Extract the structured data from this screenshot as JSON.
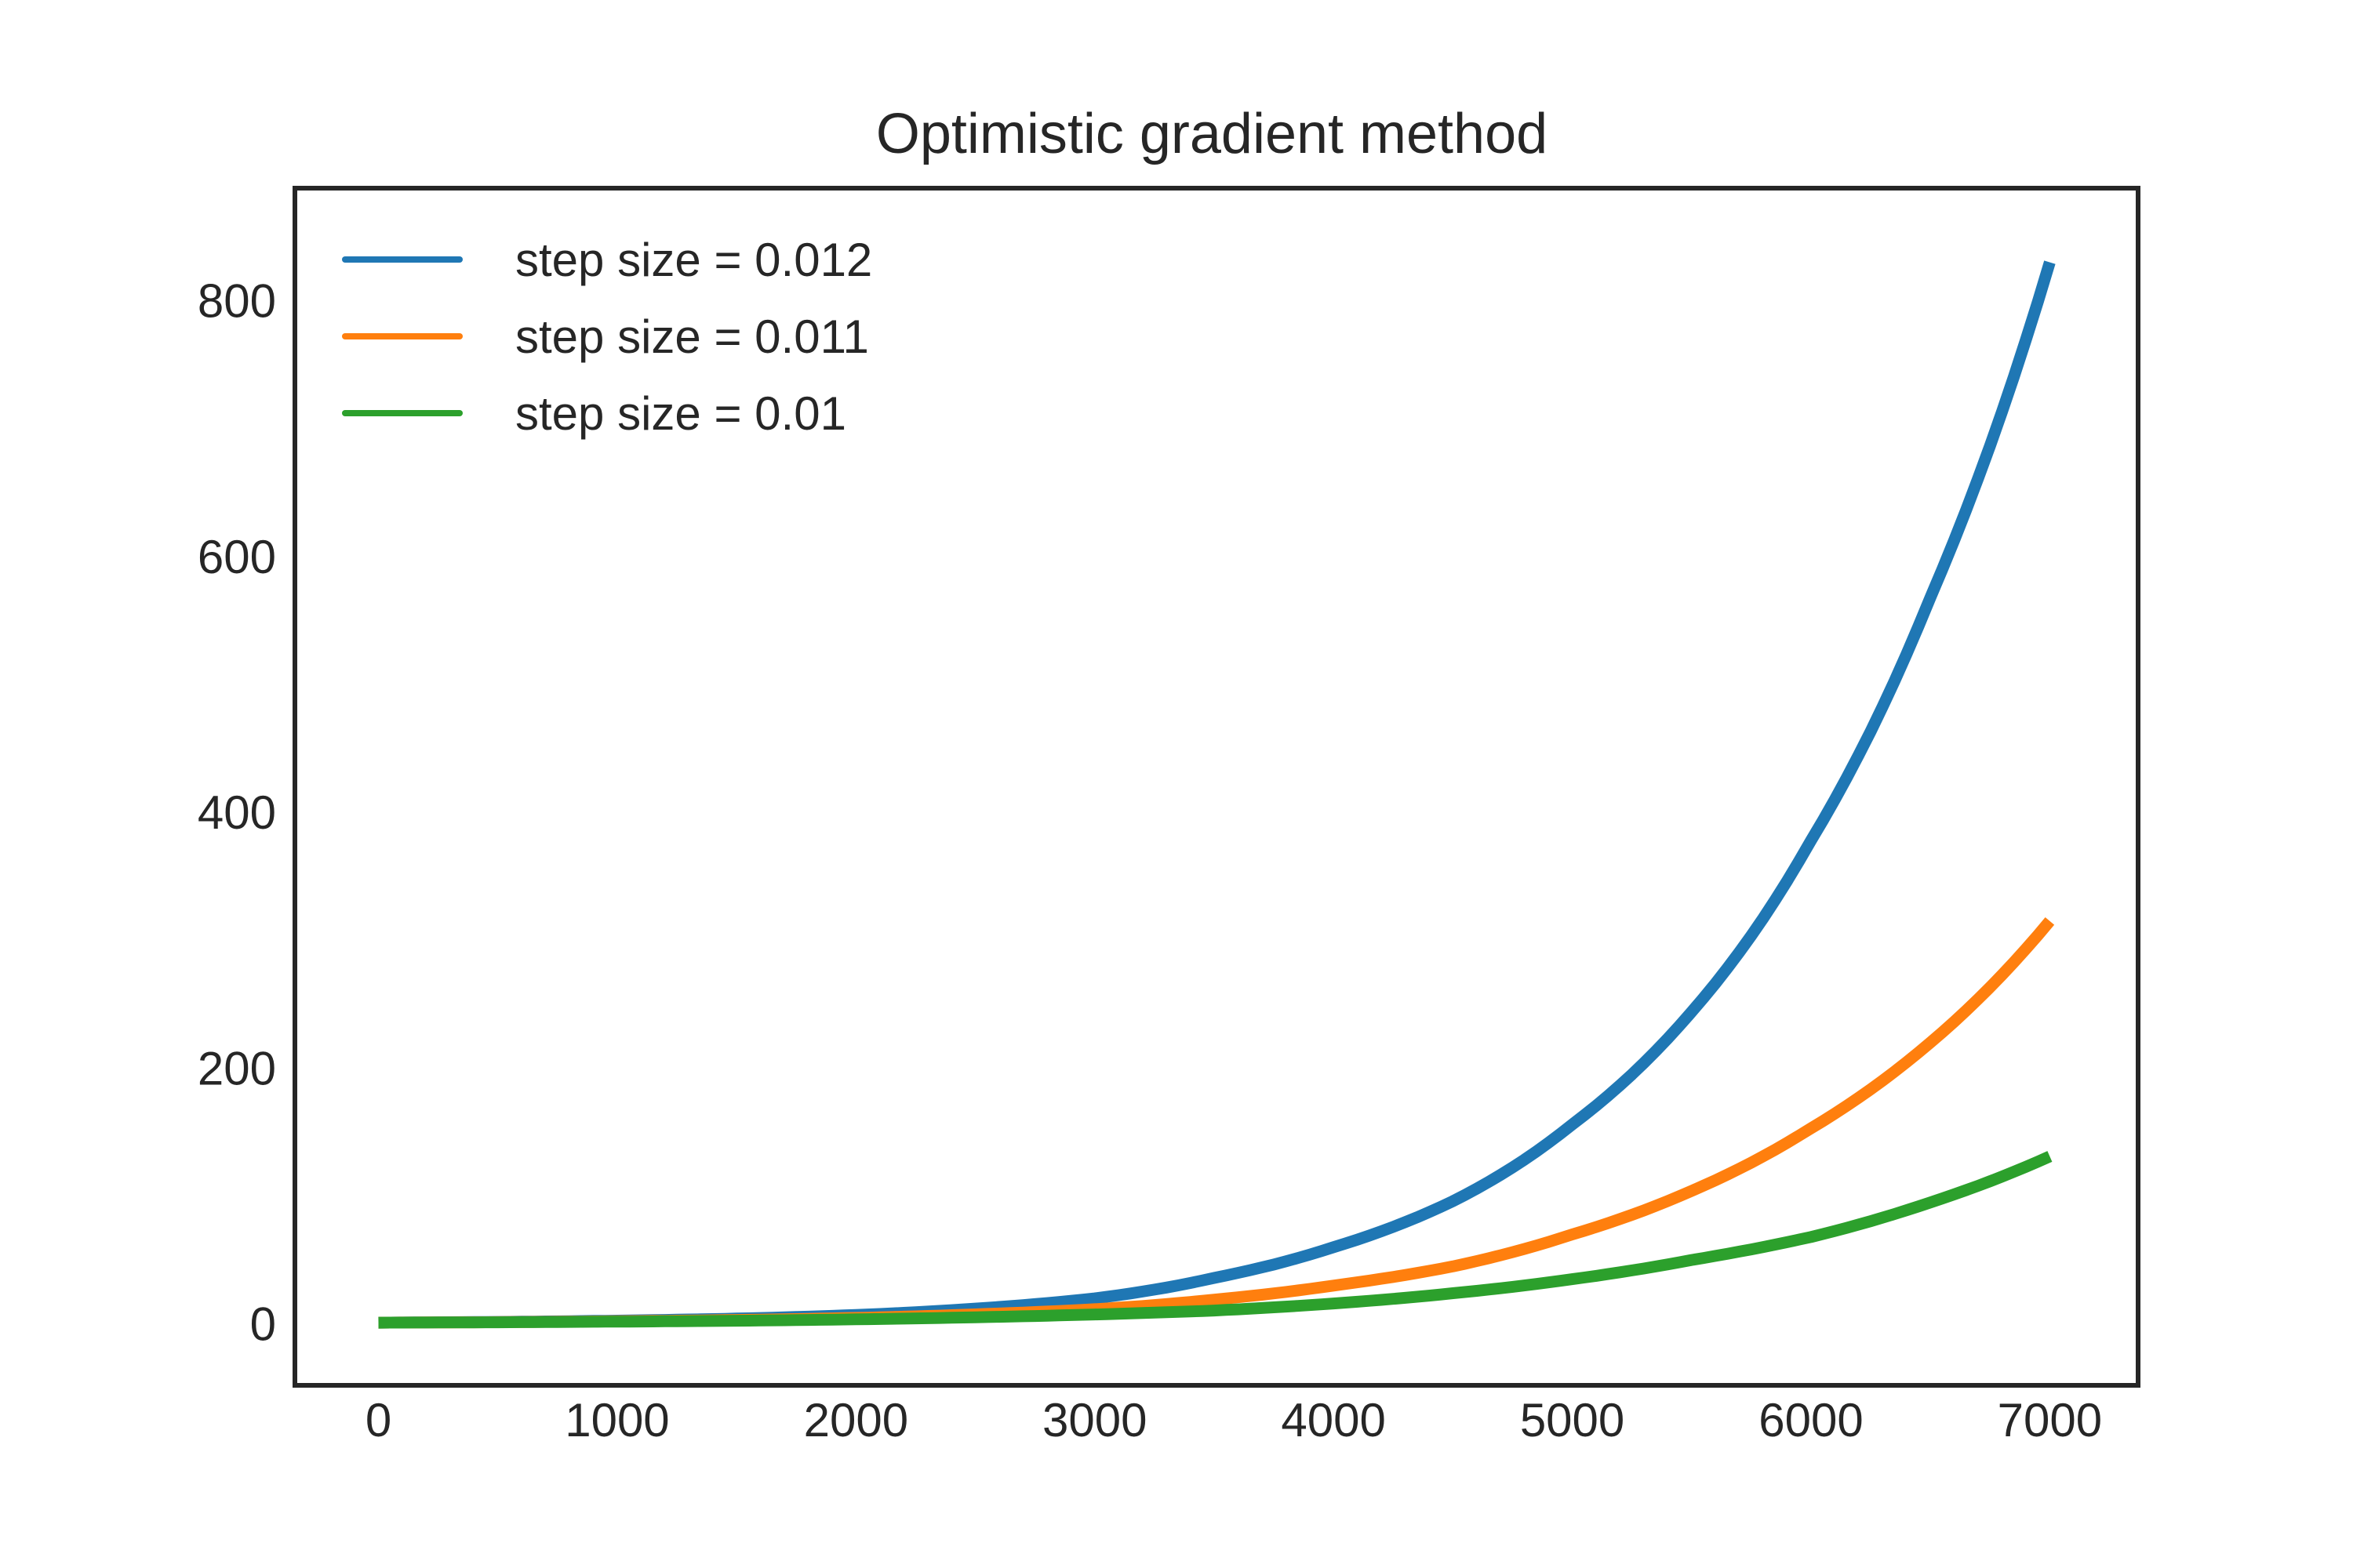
{
  "chart_data": {
    "type": "line",
    "title": "Optimistic gradient method",
    "xlabel": "",
    "ylabel": "",
    "xlim": [
      -350,
      7370
    ],
    "ylim": [
      -48,
      888
    ],
    "grid": false,
    "legend_position": "top-left",
    "x_ticks": [
      0,
      1000,
      2000,
      3000,
      4000,
      5000,
      6000,
      7000
    ],
    "y_ticks": [
      0,
      200,
      400,
      600,
      800
    ],
    "x_tick_labels": [
      "0",
      "1000",
      "2000",
      "3000",
      "4000",
      "5000",
      "6000",
      "7000"
    ],
    "y_tick_labels": [
      "0",
      "200",
      "400",
      "600",
      "800"
    ],
    "x": [
      0,
      500,
      1000,
      1500,
      2000,
      2500,
      3000,
      3500,
      4000,
      4500,
      5000,
      5500,
      6000,
      6500,
      7000
    ],
    "series": [
      {
        "name": "step size = 0.012",
        "color": "#1f77b4",
        "values": [
          1,
          1.6,
          2.6,
          4.2,
          7,
          12,
          20,
          36,
          60,
          96,
          156,
          244,
          378,
          568,
          830
        ]
      },
      {
        "name": "step size = 0.011",
        "color": "#ff7f0e",
        "values": [
          1,
          1.4,
          2.1,
          3.1,
          4.7,
          7.5,
          11.5,
          19,
          30,
          45,
          70,
          104,
          153,
          220,
          315
        ]
      },
      {
        "name": "step size = 0.01",
        "color": "#2ca02c",
        "values": [
          1,
          1.3,
          1.8,
          2.5,
          3.6,
          5.2,
          7.4,
          10.5,
          16,
          24,
          35,
          50,
          68,
          95,
          131
        ]
      }
    ]
  }
}
